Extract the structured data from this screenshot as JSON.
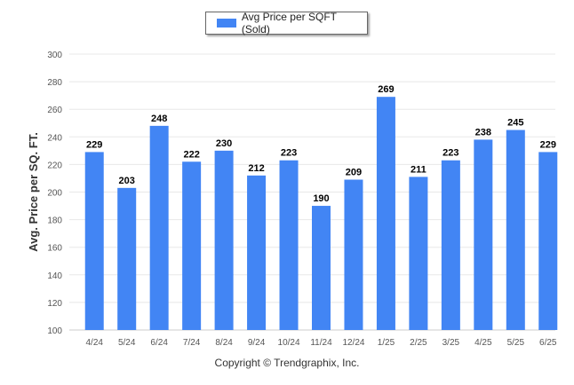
{
  "chart_data": {
    "type": "bar",
    "categories": [
      "4/24",
      "5/24",
      "6/24",
      "7/24",
      "8/24",
      "9/24",
      "10/24",
      "11/24",
      "12/24",
      "1/25",
      "2/25",
      "3/25",
      "4/25",
      "5/25",
      "6/25"
    ],
    "series": [
      {
        "name": "Avg Price per SQFT (Sold)",
        "values": [
          229,
          203,
          248,
          222,
          230,
          212,
          223,
          190,
          209,
          269,
          211,
          223,
          238,
          245,
          229
        ]
      }
    ],
    "ylabel": "Avg. Price per SQ. FT.",
    "xlabel": "",
    "ylim": [
      100,
      300
    ],
    "yticks": [
      100,
      120,
      140,
      160,
      180,
      200,
      220,
      240,
      260,
      280,
      300
    ],
    "grid": true,
    "legend_placement": "top-center",
    "data_labels": true,
    "colors": {
      "bar": "#4285f4",
      "grid": "#e8e8e8",
      "axis_text": "#555555",
      "label_text": "#000000"
    }
  },
  "footer": {
    "copyright": "Copyright © Trendgraphix, Inc."
  }
}
